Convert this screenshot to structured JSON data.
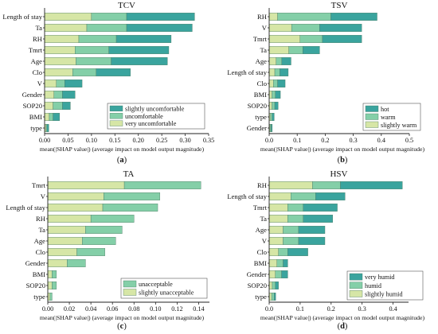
{
  "colors": {
    "light": "#d6e6a6",
    "mid": "#84cfa8",
    "dark": "#3aa49e",
    "bar_stroke": "#4d7a64",
    "axis": "#222222"
  },
  "chart_data": [
    {
      "type": "bar",
      "orientation": "horizontal",
      "stacked": true,
      "title": "TCV",
      "xlabel": "mean(|SHAP value|) (average impact on model output magnitude)",
      "panel_label": "(a)",
      "xlim": [
        0,
        0.35
      ],
      "xticks": [
        "0.00",
        "0.05",
        "0.10",
        "0.15",
        "0.20",
        "0.25",
        "0.30",
        "0.35"
      ],
      "legend_position": "lower-right",
      "categories": [
        "Length of stay",
        "Ta",
        "RH",
        "Tmrt",
        "Age",
        "Clo",
        "V",
        "Gender",
        "SOP20",
        "BMI",
        "type"
      ],
      "series": [
        {
          "name": "very uncomfortable",
          "color_key": "light",
          "values": [
            0.1,
            0.09,
            0.073,
            0.065,
            0.067,
            0.06,
            0.025,
            0.02,
            0.018,
            0.01,
            0.003
          ]
        },
        {
          "name": "uncomfortable",
          "color_key": "mid",
          "values": [
            0.075,
            0.085,
            0.08,
            0.072,
            0.075,
            0.05,
            0.018,
            0.018,
            0.02,
            0.008,
            0.002
          ]
        },
        {
          "name": "slightly uncomfortable",
          "color_key": "dark",
          "values": [
            0.145,
            0.14,
            0.117,
            0.128,
            0.12,
            0.073,
            0.037,
            0.027,
            0.017,
            0.014,
            0.004
          ]
        }
      ]
    },
    {
      "type": "bar",
      "orientation": "horizontal",
      "stacked": true,
      "title": "TSV",
      "xlabel": "mean(|SHAP value|) (average impact on model output magnitude)",
      "panel_label": "(b)",
      "xlim": [
        0,
        0.5
      ],
      "xticks": [
        "0.0",
        "0.1",
        "0.2",
        "0.3",
        "0.4",
        "0.5"
      ],
      "legend_position": "lower-right",
      "categories": [
        "RH",
        "V",
        "Tmrt",
        "Ta",
        "Age",
        "Length of stay",
        "Clo",
        "BMI",
        "SOP20",
        "type",
        "Gender"
      ],
      "series": [
        {
          "name": "slightly warm",
          "color_key": "light",
          "values": [
            0.03,
            0.08,
            0.11,
            0.07,
            0.025,
            0.02,
            0.015,
            0.01,
            0.01,
            0.005,
            0.003
          ]
        },
        {
          "name": "warm",
          "color_key": "mid",
          "values": [
            0.19,
            0.1,
            0.08,
            0.05,
            0.02,
            0.018,
            0.015,
            0.012,
            0.01,
            0.006,
            0.004
          ]
        },
        {
          "name": "hot",
          "color_key": "dark",
          "values": [
            0.165,
            0.15,
            0.14,
            0.06,
            0.033,
            0.03,
            0.027,
            0.018,
            0.012,
            0.007,
            0.004
          ]
        }
      ]
    },
    {
      "type": "bar",
      "orientation": "horizontal",
      "stacked": true,
      "title": "TA",
      "xlabel": "mean(|SHAP value|) (average impact on model output magnitude)",
      "panel_label": "(c)",
      "xlim": [
        0,
        0.15
      ],
      "xticks": [
        "0.00",
        "0.02",
        "0.04",
        "0.06",
        "0.08",
        "0.10",
        "0.12",
        "0.14"
      ],
      "legend_position": "lower-right",
      "categories": [
        "Tmrt",
        "V",
        "Length of stay",
        "RH",
        "Ta",
        "Age",
        "Clo",
        "Gender",
        "BMI",
        "SOP20",
        "type"
      ],
      "series": [
        {
          "name": "slightly unacceptable",
          "color_key": "light",
          "values": [
            0.071,
            0.052,
            0.051,
            0.04,
            0.035,
            0.032,
            0.027,
            0.018,
            0.004,
            0.004,
            0.002
          ]
        },
        {
          "name": "unacceptable",
          "color_key": "mid",
          "values": [
            0.071,
            0.052,
            0.051,
            0.04,
            0.034,
            0.031,
            0.026,
            0.017,
            0.004,
            0.004,
            0.002
          ]
        }
      ]
    },
    {
      "type": "bar",
      "orientation": "horizontal",
      "stacked": true,
      "title": "HSV",
      "xlabel": "mean(|SHAP value|) (average impact on model output magnitude)",
      "panel_label": "(d)",
      "xlim": [
        0,
        0.45
      ],
      "xticks": [
        "0.0",
        "0.1",
        "0.2",
        "0.3",
        "0.4"
      ],
      "legend_position": "lower-right",
      "categories": [
        "RH",
        "Length of stay",
        "Tmrt",
        "Ta",
        "Age",
        "V",
        "Clo",
        "BMI",
        "Gender",
        "SOP20",
        "type"
      ],
      "series": [
        {
          "name": "slightly humid",
          "color_key": "light",
          "values": [
            0.14,
            0.07,
            0.06,
            0.06,
            0.045,
            0.045,
            0.03,
            0.025,
            0.02,
            0.01,
            0.008
          ]
        },
        {
          "name": "humid",
          "color_key": "mid",
          "values": [
            0.09,
            0.08,
            0.05,
            0.05,
            0.05,
            0.05,
            0.03,
            0.02,
            0.02,
            0.01,
            0.008
          ]
        },
        {
          "name": "very humid",
          "color_key": "dark",
          "values": [
            0.2,
            0.095,
            0.11,
            0.095,
            0.085,
            0.085,
            0.065,
            0.015,
            0.02,
            0.01,
            0.005
          ]
        }
      ]
    }
  ]
}
